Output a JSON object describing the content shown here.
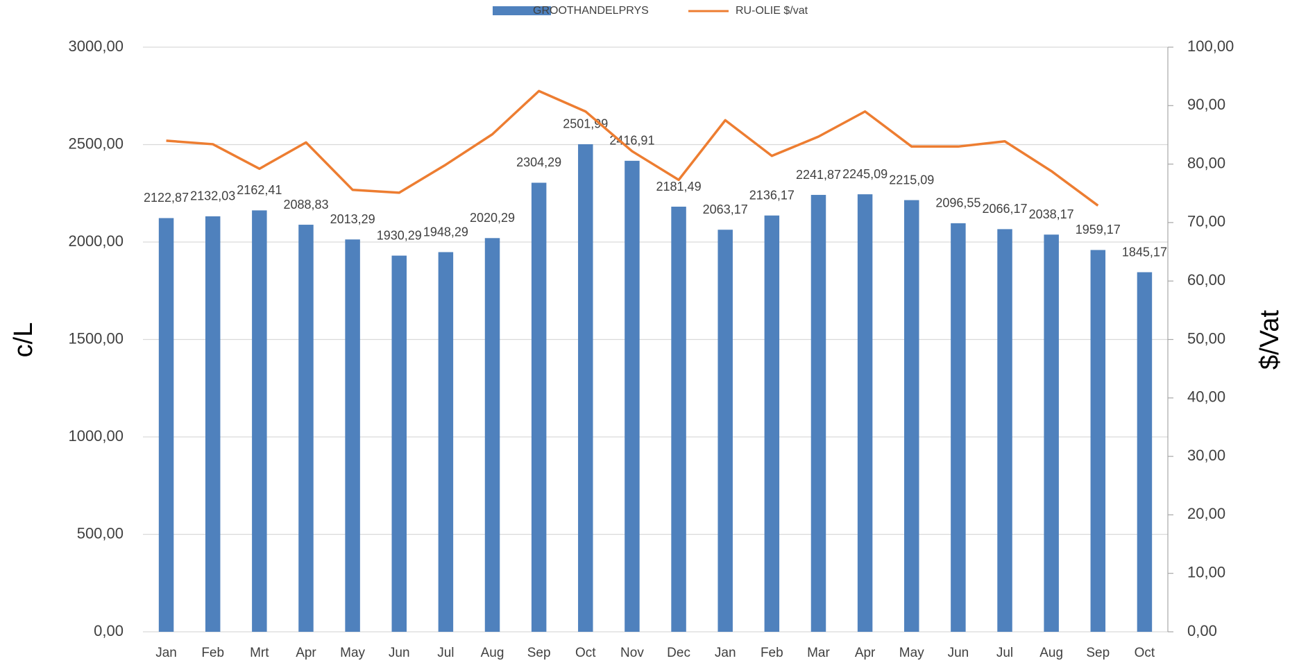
{
  "chart_data": {
    "type": "bar_line",
    "categories": [
      "Jan",
      "Feb",
      "Mrt",
      "Apr",
      "May",
      "Jun",
      "Jul",
      "Aug",
      "Sep",
      "Oct",
      "Nov",
      "Dec",
      "Jan",
      "Feb",
      "Mar",
      "Apr",
      "May",
      "Jun",
      "Jul",
      "Aug",
      "Sep",
      "Oct"
    ],
    "y_label": "c/L",
    "y2_label": "$/Vat",
    "series": [
      {
        "name": "GROOTHANDELPRYS",
        "color": "#4f81bd",
        "type": "bar",
        "values": [
          2122.87,
          2132.03,
          2162.41,
          2088.83,
          2013.29,
          1930.29,
          1948.29,
          2020.29,
          2304.29,
          2501.99,
          2416.91,
          2181.49,
          2063.17,
          2136.17,
          2241.87,
          2245.09,
          2215.09,
          2096.55,
          2066.17,
          2038.17,
          1959.17,
          1845.17
        ],
        "value_labels": [
          "2122,87",
          "2132,03",
          "2162,41",
          "2088,83",
          "2013,29",
          "1930,29",
          "1948,29",
          "2020,29",
          "2304,29",
          "2501,99",
          "2416,91",
          "2181,49",
          "2063,17",
          "2136,17",
          "2241,87",
          "2245,09",
          "2215,09",
          "2096,55",
          "2066,17",
          "2038,17",
          "1959,17",
          "1845,17"
        ]
      },
      {
        "name": "RU-OLIE $/vat",
        "color": "#ed7d31",
        "type": "line",
        "axis": "y2",
        "values": [
          84.0,
          83.4,
          79.2,
          83.7,
          75.6,
          75.1,
          79.9,
          85.1,
          92.5,
          89.0,
          82.2,
          77.3,
          87.5,
          81.4,
          84.7,
          89.0,
          83.0,
          83.0,
          83.9,
          78.8,
          72.9,
          null
        ]
      }
    ],
    "ylim": [
      0,
      3000
    ],
    "yticks": [
      {
        "value": 0,
        "label": "0,00"
      },
      {
        "value": 500,
        "label": "500,00"
      },
      {
        "value": 1000,
        "label": "1000,00"
      },
      {
        "value": 1500,
        "label": "1500,00"
      },
      {
        "value": 2000,
        "label": "2000,00"
      },
      {
        "value": 2500,
        "label": "2500,00"
      },
      {
        "value": 3000,
        "label": "3000,00"
      }
    ],
    "y2lim": [
      0,
      100
    ],
    "y2ticks": [
      {
        "value": 0,
        "label": "0,00"
      },
      {
        "value": 10,
        "label": "10,00"
      },
      {
        "value": 20,
        "label": "20,00"
      },
      {
        "value": 30,
        "label": "30,00"
      },
      {
        "value": 40,
        "label": "40,00"
      },
      {
        "value": 50,
        "label": "50,00"
      },
      {
        "value": 60,
        "label": "60,00"
      },
      {
        "value": 70,
        "label": "70,00"
      },
      {
        "value": 80,
        "label": "80,00"
      },
      {
        "value": 90,
        "label": "90,00"
      },
      {
        "value": 100,
        "label": "100,00"
      }
    ],
    "grid": true,
    "legend": "top"
  }
}
